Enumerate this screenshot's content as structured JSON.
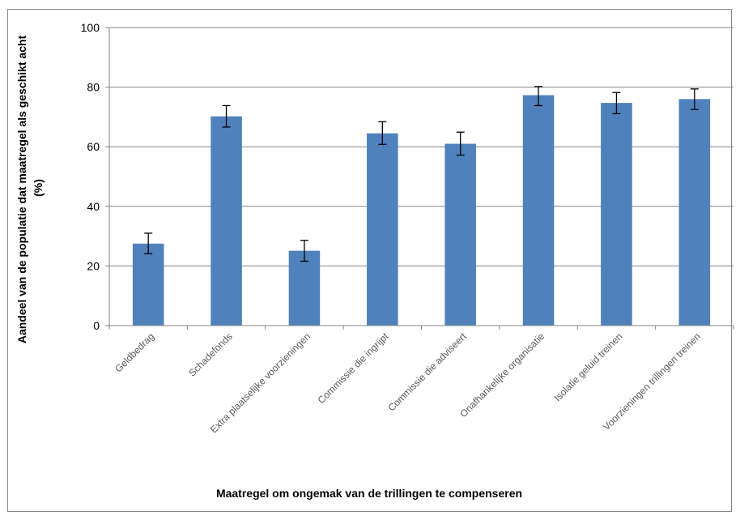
{
  "chart_data": {
    "type": "bar",
    "title": "",
    "xlabel": "Maatregel om ongemak van de trillingen te compenseren",
    "ylabel": "Aandeel van de populatie dat maatregel als geschikt acht (%)",
    "ylabel_lines": [
      "Aandeel van de populatie  dat maatregel als geschikt acht",
      "(%)"
    ],
    "categories": [
      "Geldbedrag",
      "Schadefonds",
      "Extra plaatselijke voorzieningen",
      "Commissie die ingrijpt",
      "Commissie die adviseert",
      "Onafhankelijke organisatie",
      "Isolatie geluid treinen",
      "Voorzieningen trillingen treinen"
    ],
    "values": [
      27.5,
      70.2,
      25.1,
      64.5,
      61.0,
      77.3,
      74.7,
      76.0
    ],
    "error_low": [
      24.1,
      66.6,
      21.6,
      60.8,
      57.2,
      73.8,
      71.1,
      72.5
    ],
    "error_high": [
      31.0,
      73.8,
      28.6,
      68.4,
      64.9,
      80.2,
      78.2,
      79.4
    ],
    "ylim": [
      0,
      100
    ],
    "yticks": [
      0,
      20,
      40,
      60,
      80,
      100
    ],
    "grid": true,
    "legend": "none",
    "bar_color": "#4F81BD",
    "grid_color": "#868686"
  }
}
